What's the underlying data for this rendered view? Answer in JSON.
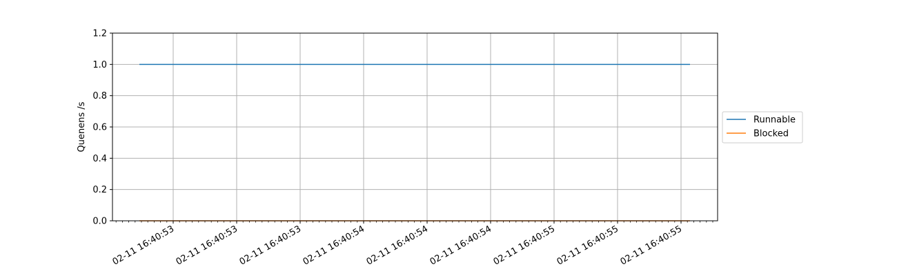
{
  "chart_data": {
    "type": "line",
    "title": "",
    "xlabel": "",
    "ylabel": "Quenens /s",
    "ylim": [
      0,
      1.2
    ],
    "y_ticks": [
      0.0,
      0.2,
      0.4,
      0.6,
      0.8,
      1.0,
      1.2
    ],
    "x_tick_labels": [
      "02-11 16:40:53",
      "02-11 16:40:53",
      "02-11 16:40:53",
      "02-11 16:40:54",
      "02-11 16:40:54",
      "02-11 16:40:54",
      "02-11 16:40:55",
      "02-11 16:40:55",
      "02-11 16:40:55"
    ],
    "grid": true,
    "legend_position": "center-right, outside plot",
    "series": [
      {
        "name": "Runnable",
        "color": "#1f77b4",
        "values": [
          1.0,
          1.0
        ]
      },
      {
        "name": "Blocked",
        "color": "#ff7f0e",
        "values": [
          0.0,
          0.0
        ]
      }
    ]
  }
}
